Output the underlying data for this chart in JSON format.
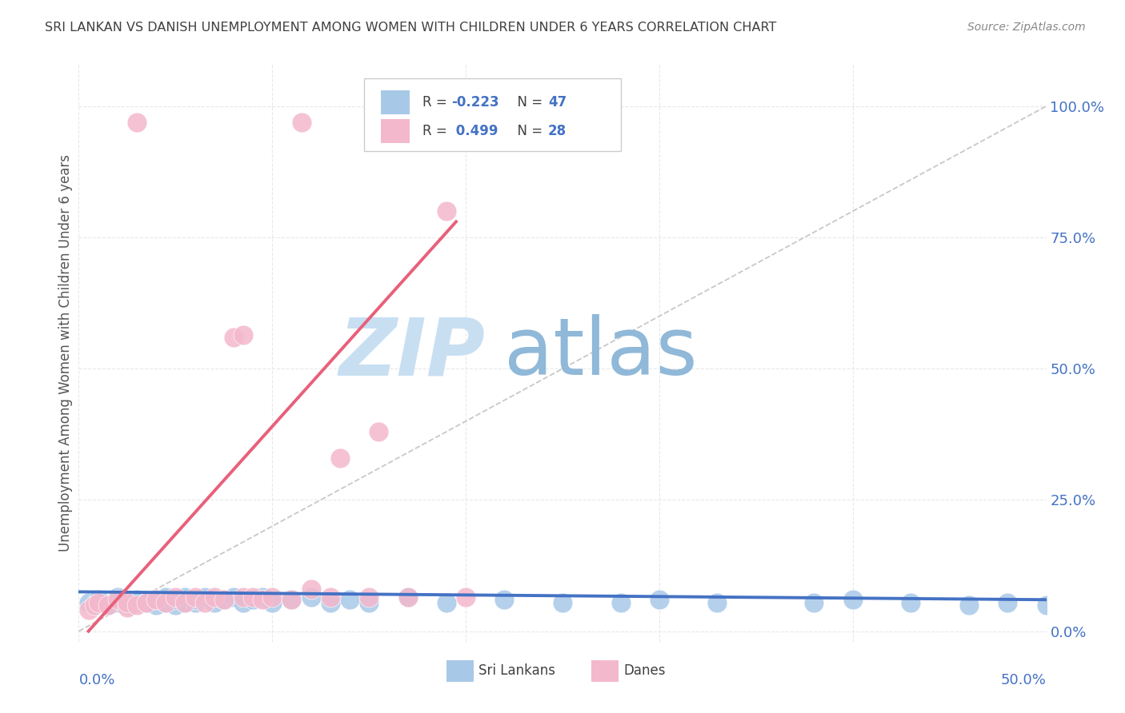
{
  "title": "SRI LANKAN VS DANISH UNEMPLOYMENT AMONG WOMEN WITH CHILDREN UNDER 6 YEARS CORRELATION CHART",
  "source": "Source: ZipAtlas.com",
  "ylabel": "Unemployment Among Women with Children Under 6 years",
  "ytick_labels": [
    "0.0%",
    "25.0%",
    "50.0%",
    "75.0%",
    "100.0%"
  ],
  "ytick_values": [
    0.0,
    0.25,
    0.5,
    0.75,
    1.0
  ],
  "xlim": [
    0.0,
    0.5
  ],
  "ylim": [
    -0.02,
    1.08
  ],
  "sri_lanka_color": "#a8c8e8",
  "dane_color": "#f4b8cc",
  "sri_lanka_line_color": "#4472c4",
  "dane_line_color": "#e8607a",
  "diagonal_color": "#c8c8c8",
  "background_color": "#ffffff",
  "grid_color": "#e8e8e8",
  "title_color": "#404040",
  "watermark_zip_color": "#c8dff2",
  "watermark_atlas_color": "#90b8d8",
  "sri_lankans_x": [
    0.005,
    0.008,
    0.01,
    0.015,
    0.02,
    0.02,
    0.025,
    0.03,
    0.03,
    0.035,
    0.04,
    0.04,
    0.045,
    0.045,
    0.05,
    0.05,
    0.055,
    0.055,
    0.06,
    0.06,
    0.065,
    0.07,
    0.075,
    0.08,
    0.085,
    0.09,
    0.095,
    0.1,
    0.11,
    0.12,
    0.13,
    0.14,
    0.15,
    0.17,
    0.19,
    0.22,
    0.25,
    0.28,
    0.3,
    0.33,
    0.38,
    0.4,
    0.43,
    0.46,
    0.48,
    0.5,
    0.52
  ],
  "sri_lankans_y": [
    0.055,
    0.05,
    0.06,
    0.05,
    0.055,
    0.065,
    0.05,
    0.055,
    0.06,
    0.055,
    0.05,
    0.06,
    0.055,
    0.065,
    0.05,
    0.06,
    0.055,
    0.065,
    0.055,
    0.06,
    0.065,
    0.055,
    0.06,
    0.065,
    0.055,
    0.06,
    0.065,
    0.055,
    0.06,
    0.065,
    0.055,
    0.06,
    0.055,
    0.065,
    0.055,
    0.06,
    0.055,
    0.055,
    0.06,
    0.055,
    0.055,
    0.06,
    0.055,
    0.05,
    0.055,
    0.05,
    0.055
  ],
  "danes_x": [
    0.005,
    0.008,
    0.01,
    0.015,
    0.02,
    0.025,
    0.025,
    0.03,
    0.035,
    0.04,
    0.045,
    0.05,
    0.055,
    0.06,
    0.065,
    0.07,
    0.075,
    0.08,
    0.085,
    0.09,
    0.095,
    0.1,
    0.11,
    0.12,
    0.13,
    0.15,
    0.17,
    0.2
  ],
  "danes_y": [
    0.04,
    0.05,
    0.055,
    0.05,
    0.06,
    0.045,
    0.055,
    0.05,
    0.055,
    0.06,
    0.055,
    0.065,
    0.055,
    0.065,
    0.055,
    0.065,
    0.06,
    0.56,
    0.065,
    0.065,
    0.06,
    0.065,
    0.06,
    0.08,
    0.065,
    0.065,
    0.065,
    0.065
  ],
  "dane_outliers_x": [
    0.03,
    0.115,
    0.19,
    0.085,
    0.155,
    0.135
  ],
  "dane_outliers_y": [
    0.97,
    0.97,
    0.8,
    0.565,
    0.38,
    0.33
  ],
  "sl_trend_x": [
    0.0,
    0.5
  ],
  "sl_trend_y": [
    0.075,
    0.06
  ],
  "dane_trend_x": [
    0.005,
    0.195
  ],
  "dane_trend_y": [
    0.0,
    0.78
  ]
}
